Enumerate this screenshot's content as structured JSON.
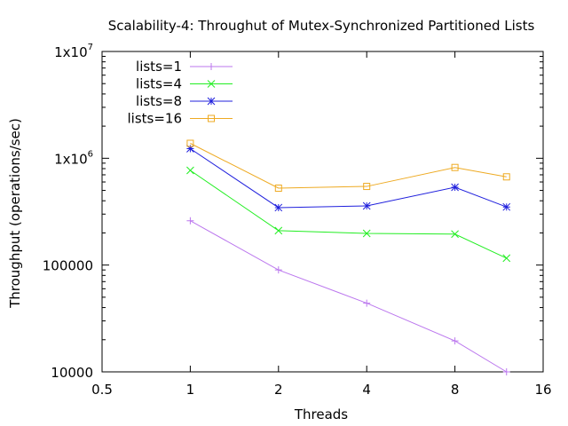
{
  "chart_data": {
    "type": "line",
    "title": "Scalability-4: Throughut of Mutex-Synchronized Partitioned Lists",
    "xlabel": "Threads",
    "ylabel": "Throughput (operations/sec)",
    "x_scale": "log2",
    "y_scale": "log10",
    "xlim": [
      0.5,
      16
    ],
    "ylim": [
      10000,
      10000000
    ],
    "x_ticks": [
      {
        "value": 0.5,
        "label": "0.5"
      },
      {
        "value": 1,
        "label": "1"
      },
      {
        "value": 2,
        "label": "2"
      },
      {
        "value": 4,
        "label": "4"
      },
      {
        "value": 8,
        "label": "8"
      },
      {
        "value": 16,
        "label": "16"
      }
    ],
    "y_ticks": [
      {
        "value": 10000,
        "label": "10000"
      },
      {
        "value": 100000,
        "label": "100000"
      },
      {
        "value": 1000000,
        "label": "1x10",
        "exp": "6"
      },
      {
        "value": 10000000,
        "label": "1x10",
        "exp": "7"
      }
    ],
    "grid": false,
    "legend_position": "top-left",
    "x": [
      1,
      2,
      4,
      8,
      12
    ],
    "series": [
      {
        "name": "lists=1",
        "values": [
          260000,
          90000,
          44000,
          19500,
          10000
        ],
        "color": "#bb77ee",
        "marker": "plus"
      },
      {
        "name": "lists=4",
        "values": [
          770000,
          210000,
          198000,
          195000,
          116000
        ],
        "color": "#22ee22",
        "marker": "cross"
      },
      {
        "name": "lists=8",
        "values": [
          1230000,
          345000,
          358000,
          535000,
          350000
        ],
        "color": "#2020dd",
        "marker": "star"
      },
      {
        "name": "lists=16",
        "values": [
          1380000,
          525000,
          545000,
          820000,
          670000
        ],
        "color": "#eeaa22",
        "marker": "square"
      }
    ]
  }
}
